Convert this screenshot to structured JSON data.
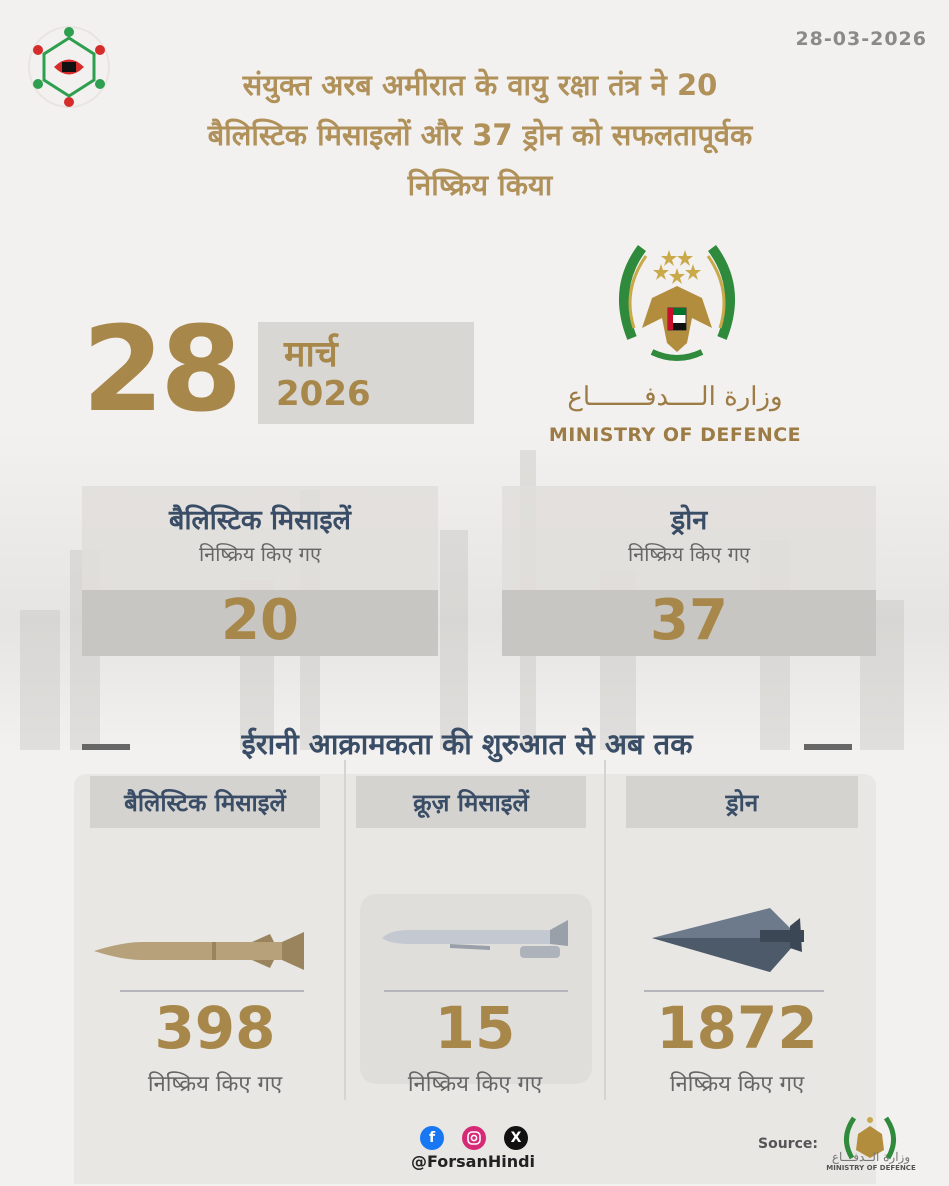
{
  "date_top": "28-03-2026",
  "headline_lines": [
    "संयुक्त अरब अमीरात के वायु रक्षा तंत्र ने 20",
    "बैलिस्टिक मिसाइलों और 37 ड्रोन को सफलतापूर्वक",
    "निष्क्रिय किया"
  ],
  "date_block": {
    "day": "28",
    "month": "मार्च",
    "year": "2026"
  },
  "ministry": {
    "arabic": "وزارة الــــدفـــــــاع",
    "english": "MINISTRY OF DEFENCE"
  },
  "today": [
    {
      "title": "बैलिस्टिक मिसाइलें",
      "subtitle": "निष्क्रिय किए गए",
      "value": "20"
    },
    {
      "title": "ड्रोन",
      "subtitle": "निष्क्रिय किए गए",
      "value": "37"
    }
  ],
  "section_title": "ईरानी आक्रामकता की शुरुआत से अब तक",
  "totals": [
    {
      "label": "बैलिस्टिक मिसाइलें",
      "value": "398",
      "subtitle": "निष्क्रिय किए गए"
    },
    {
      "label": "क्रूज़ मिसाइलें",
      "value": "15",
      "subtitle": "निष्क्रिय किए गए"
    },
    {
      "label": "ड्रोन",
      "value": "1872",
      "subtitle": "निष्क्रिय किए गए"
    }
  ],
  "social": {
    "handle": "@ForsanHindi",
    "icons": [
      "facebook-icon",
      "instagram-icon",
      "x-icon"
    ],
    "colors": {
      "facebook": "#1877f2",
      "instagram": "#d62976",
      "x": "#111111"
    }
  },
  "source": {
    "label": "Source:",
    "arabic": "وزارة الــدفـــاع",
    "english": "MINISTRY OF DEFENCE"
  },
  "colors": {
    "gold": "#a8874a",
    "navy": "#3a4d66",
    "background": "#f3f1ef"
  }
}
